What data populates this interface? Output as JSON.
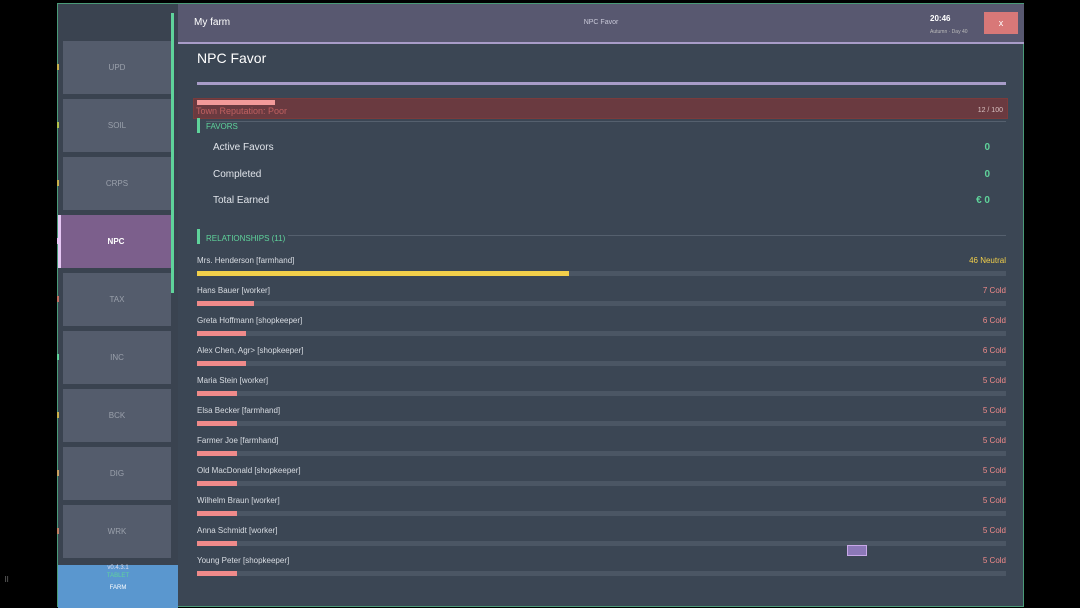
{
  "header": {
    "farm_name": "My farm",
    "screen_title": "NPC Favor",
    "time": "20:46",
    "date": "Autumn · Day 40",
    "close_label": "x"
  },
  "sidebar": {
    "items": [
      {
        "label": "UPD",
        "marker": "#c9b04a"
      },
      {
        "label": "SOIL",
        "marker": "#b0c04a"
      },
      {
        "label": "CRPS",
        "marker": "#c9b04a"
      },
      {
        "label": "NPC",
        "marker": "#e7c8f5",
        "active": true
      },
      {
        "label": "TAX",
        "marker": "#c07060"
      },
      {
        "label": "INC",
        "marker": "#5fd39b"
      },
      {
        "label": "BCK",
        "marker": "#c9b04a"
      },
      {
        "label": "DIG",
        "marker": "#c9a060"
      },
      {
        "label": "WRK",
        "marker": "#c08060"
      }
    ],
    "footer": {
      "version": "v0.4.3.1",
      "mode": "TABLET",
      "farm": "FARM"
    }
  },
  "page": {
    "title": "NPC Favor",
    "reputation": {
      "label": "Town Reputation: Poor",
      "value": "12 / 100",
      "percent": 12
    },
    "favors": {
      "heading": "FAVORS",
      "stats": [
        {
          "label": "Active Favors",
          "value": "0"
        },
        {
          "label": "Completed",
          "value": "0"
        },
        {
          "label": "Total Earned",
          "value": "€ 0"
        }
      ]
    },
    "relationships": {
      "heading": "RELATIONSHIPS (11)",
      "items": [
        {
          "name": "Mrs. Henderson  [farmhand]",
          "score": 46,
          "status": "46  Neutral",
          "color": "#f2cf4a"
        },
        {
          "name": "Hans Bauer  [worker]",
          "score": 7,
          "status": "7  Cold",
          "color": "#f08a8a"
        },
        {
          "name": "Greta Hoffmann  [shopkeeper]",
          "score": 6,
          "status": "6  Cold",
          "color": "#f08a8a"
        },
        {
          "name": "Alex Chen, Agr>  [shopkeeper]",
          "score": 6,
          "status": "6  Cold",
          "color": "#f08a8a"
        },
        {
          "name": "Maria Stein  [worker]",
          "score": 5,
          "status": "5  Cold",
          "color": "#f08a8a"
        },
        {
          "name": "Elsa Becker  [farmhand]",
          "score": 5,
          "status": "5  Cold",
          "color": "#f08a8a"
        },
        {
          "name": "Farmer Joe  [farmhand]",
          "score": 5,
          "status": "5  Cold",
          "color": "#f08a8a"
        },
        {
          "name": "Old MacDonald  [shopkeeper]",
          "score": 5,
          "status": "5  Cold",
          "color": "#f08a8a"
        },
        {
          "name": "Wilhelm Braun  [worker]",
          "score": 5,
          "status": "5  Cold",
          "color": "#f08a8a"
        },
        {
          "name": "Anna Schmidt  [worker]",
          "score": 5,
          "status": "5  Cold",
          "color": "#f08a8a"
        },
        {
          "name": "Young Peter  [shopkeeper]",
          "score": 5,
          "status": "5  Cold",
          "color": "#f08a8a"
        }
      ]
    }
  }
}
